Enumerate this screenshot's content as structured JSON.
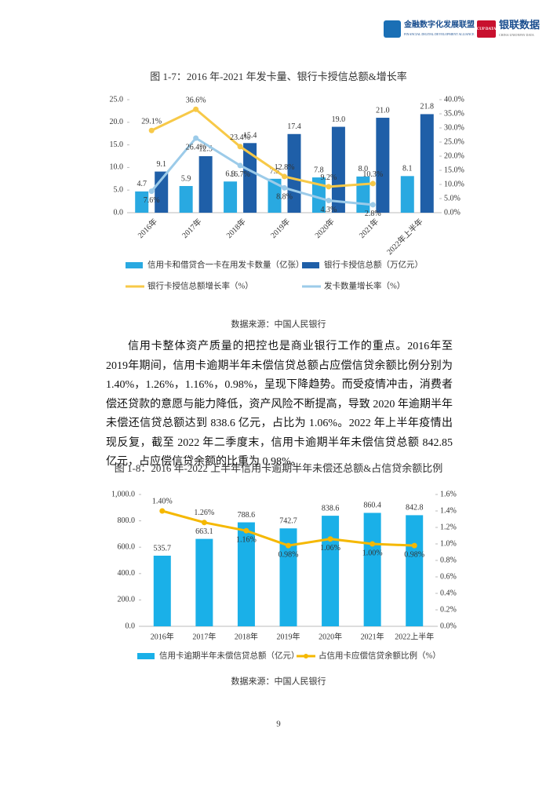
{
  "document": {
    "header": {
      "alliance_name": "金融数字化发展联盟",
      "alliance_sub": "FINANCIAL DIGITAL DEVELOPMENT ALLIANCE",
      "cup_badge": "CUP DATA",
      "company_name": "银联数据",
      "company_sub": "CHINA UNIONPAY DATA"
    },
    "paragraph": "信用卡整体资产质量的把控也是商业银行工作的重点。2016年至2019年期间，信用卡逾期半年未偿信贷总额占应偿信贷余额比例分别为 1.40%，1.26%，1.16%，0.98%，呈现下降趋势。而受疫情冲击，消费者偿还贷款的意愿与能力降低，资产风险不断提高，导致 2020 年逾期半年未偿还信贷总额达到 838.6 亿元，占比为 1.06%。2022 年上半年疫情出现反复，截至 2022 年二季度末，信用卡逾期半年未偿信贷总额 842.85 亿元，占应偿信贷余额的比重为 0.98%。",
    "page_number": "9"
  },
  "chart_data": [
    {
      "type": "combo",
      "title": "图 1-7：2016 年-2021 年发卡量、银行卡授信总额&增长率",
      "source": "数据来源：中国人民银行",
      "categories": [
        "2016年",
        "2017年",
        "2018年",
        "2019年",
        "2020年",
        "2021年",
        "2022年上半年"
      ],
      "ylim": [
        0,
        25
      ],
      "yticks": [
        {
          "value": 0,
          "label": "0.0"
        },
        {
          "value": 5,
          "label": "5.0"
        },
        {
          "value": 10,
          "label": "10.0"
        },
        {
          "value": 15,
          "label": "15.0"
        },
        {
          "value": 20,
          "label": "20.0"
        },
        {
          "value": 25,
          "label": "25.0"
        }
      ],
      "y2lim": [
        0,
        40
      ],
      "y2ticks": [
        {
          "value": 0,
          "label": "0.0%"
        },
        {
          "value": 5,
          "label": "5.0%"
        },
        {
          "value": 10,
          "label": "10.0%"
        },
        {
          "value": 15,
          "label": "15.0%"
        },
        {
          "value": 20,
          "label": "20.0%"
        },
        {
          "value": 25,
          "label": "25.0%"
        },
        {
          "value": 30,
          "label": "30.0%"
        },
        {
          "value": 35,
          "label": "35.0%"
        },
        {
          "value": 40,
          "label": "40.0%"
        }
      ],
      "series": [
        {
          "name": "信用卡和借贷合一卡在用发卡数量（亿张）",
          "type": "bar",
          "color": "#29a9e1",
          "values": [
            4.7,
            5.9,
            6.9,
            7.5,
            7.8,
            8.0,
            8.1
          ],
          "value_labels": [
            "4.7",
            "5.9",
            "6.9",
            "7.5",
            "7.8",
            "8.0",
            "8.1"
          ]
        },
        {
          "name": "银行卡授信总额（万亿元）",
          "type": "bar",
          "color": "#1f5fa8",
          "values": [
            9.1,
            12.5,
            15.4,
            17.4,
            19.0,
            21.0,
            21.8
          ],
          "value_labels": [
            "9.1",
            "12.5",
            "15.4",
            "17.4",
            "19.0",
            "21.0",
            "21.8"
          ]
        },
        {
          "name": "银行卡授信总额增长率（%）",
          "type": "line",
          "axis": "y2",
          "color": "#f7c948",
          "values": [
            29.1,
            36.6,
            23.4,
            12.8,
            9.2,
            10.3,
            null
          ],
          "value_labels": [
            "29.1%",
            "36.6%",
            "23.4%",
            "12.8%",
            "9.2%",
            "10.3%",
            null
          ]
        },
        {
          "name": "发卡数量增长率（%）",
          "type": "line",
          "axis": "y2",
          "color": "#9ccbe9",
          "values": [
            7.6,
            26.4,
            16.7,
            8.8,
            4.3,
            2.8,
            null
          ],
          "value_labels": [
            "7.6%",
            "26.4%",
            "16.7%",
            "8.8%",
            "4.3%",
            "2.8%",
            null
          ]
        }
      ]
    },
    {
      "type": "combo",
      "title": "图 1-8：2016 年-2022 上半年信用卡逾期半年未偿还总额&占信贷余额比例",
      "source": "数据来源：中国人民银行",
      "categories": [
        "2016年",
        "2017年",
        "2018年",
        "2019年",
        "2020年",
        "2021年",
        "2022上半年"
      ],
      "ylim": [
        0,
        1000
      ],
      "yticks": [
        {
          "value": 0,
          "label": "0.0"
        },
        {
          "value": 200,
          "label": "200.0"
        },
        {
          "value": 400,
          "label": "400.0"
        },
        {
          "value": 600,
          "label": "600.0"
        },
        {
          "value": 800,
          "label": "800.0"
        },
        {
          "value": 1000,
          "label": "1,000.0"
        }
      ],
      "y2lim": [
        0,
        1.6
      ],
      "y2ticks": [
        {
          "value": 0,
          "label": "0.0%"
        },
        {
          "value": 0.2,
          "label": "0.2%"
        },
        {
          "value": 0.4,
          "label": "0.4%"
        },
        {
          "value": 0.6,
          "label": "0.6%"
        },
        {
          "value": 0.8,
          "label": "0.8%"
        },
        {
          "value": 1.0,
          "label": "1.0%"
        },
        {
          "value": 1.2,
          "label": "1.2%"
        },
        {
          "value": 1.4,
          "label": "1.4%"
        },
        {
          "value": 1.6,
          "label": "1.6%"
        }
      ],
      "series": [
        {
          "name": "信用卡逾期半年未偿信贷总额（亿元）",
          "type": "bar",
          "color": "#1ab0e8",
          "values": [
            535.7,
            663.1,
            788.6,
            742.7,
            838.6,
            860.4,
            842.8
          ]
        },
        {
          "name": "占信用卡应偿信贷余额比例（%）",
          "type": "line",
          "axis": "y2",
          "color": "#f5b800",
          "values": [
            1.4,
            1.26,
            1.16,
            0.98,
            1.06,
            1.0,
            0.98
          ],
          "value_labels": [
            "1.40%",
            "1.26%",
            "1.16%",
            "0.98%",
            "1.06%",
            "1.00%",
            "0.98%"
          ]
        }
      ]
    }
  ]
}
